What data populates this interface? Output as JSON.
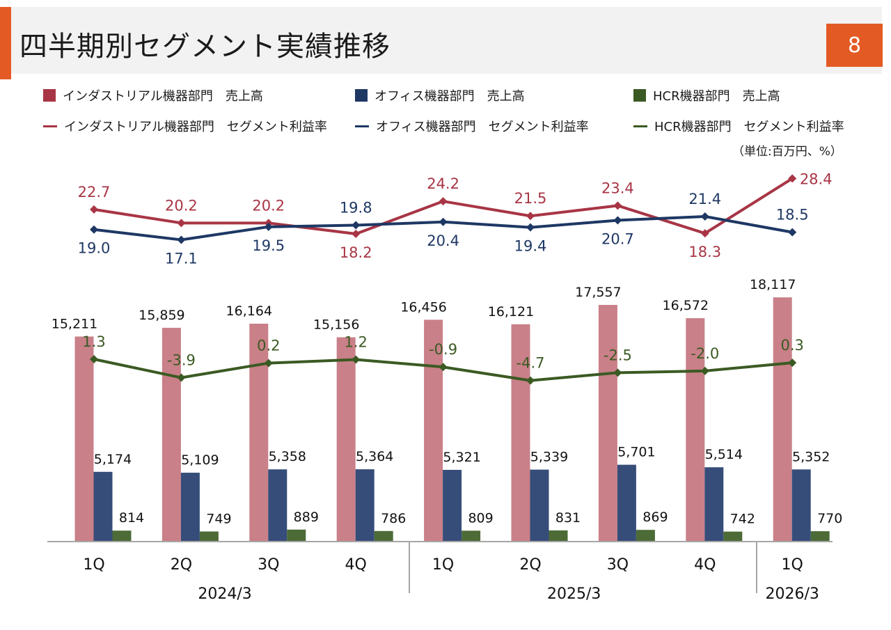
{
  "page": {
    "title": "四半期別セグメント実績推移",
    "page_number": "8",
    "unit_note": "（単位:百万円、%）"
  },
  "colors": {
    "accent": "#e35a24",
    "industrial": "#a83545",
    "industrial_bar": "#c98088",
    "office": "#1e3864",
    "office_bar": "#364d7a",
    "hcr": "#3b5a23",
    "hcr_bar": "#4c6b37"
  },
  "legend": {
    "industrial_sales": "インダストリアル機器部門　売上高",
    "office_sales": "オフィス機器部門　売上高",
    "hcr_sales": "HCR機器部門　売上高",
    "industrial_margin": "インダストリアル機器部門　セグメント利益率",
    "office_margin": "オフィス機器部門　セグメント利益率",
    "hcr_margin": "HCR機器部門　セグメント利益率"
  },
  "chart_data": {
    "type": "bar",
    "categories": [
      "1Q",
      "2Q",
      "3Q",
      "4Q",
      "1Q",
      "2Q",
      "3Q",
      "4Q",
      "1Q"
    ],
    "groups": [
      {
        "label": "2024/3",
        "span": [
          0,
          3
        ]
      },
      {
        "label": "2025/3",
        "span": [
          4,
          7
        ]
      },
      {
        "label": "2026/3",
        "span": [
          8,
          8
        ]
      }
    ],
    "series": [
      {
        "name": "インダストリアル機器部門　売上高",
        "kind": "bar",
        "color": "#c98088",
        "values": [
          15211,
          15859,
          16164,
          15156,
          16456,
          16121,
          17557,
          16572,
          18117
        ],
        "labels": [
          "15,211",
          "15,859",
          "16,164",
          "15,156",
          "16,456",
          "16,121",
          "17,557",
          "16,572",
          "18,117"
        ]
      },
      {
        "name": "オフィス機器部門　売上高",
        "kind": "bar",
        "color": "#364d7a",
        "values": [
          5174,
          5109,
          5358,
          5364,
          5321,
          5339,
          5701,
          5514,
          5352
        ],
        "labels": [
          "5,174",
          "5,109",
          "5,358",
          "5,364",
          "5,321",
          "5,339",
          "5,701",
          "5,514",
          "5,352"
        ]
      },
      {
        "name": "HCR機器部門　売上高",
        "kind": "bar",
        "color": "#4c6b37",
        "values": [
          814,
          749,
          889,
          786,
          809,
          831,
          869,
          742,
          770
        ],
        "labels": [
          "814",
          "749",
          "889",
          "786",
          "809",
          "831",
          "869",
          "742",
          "770"
        ]
      },
      {
        "name": "インダストリアル機器部門　セグメント利益率",
        "kind": "line",
        "color": "#a83545",
        "values": [
          22.7,
          20.2,
          20.2,
          18.2,
          24.2,
          21.5,
          23.4,
          18.3,
          28.4
        ],
        "labels": [
          "22.7",
          "20.2",
          "20.2",
          "18.2",
          "24.2",
          "21.5",
          "23.4",
          "18.3",
          "28.4"
        ]
      },
      {
        "name": "オフィス機器部門　セグメント利益率",
        "kind": "line",
        "color": "#1e3864",
        "values": [
          19.0,
          17.1,
          19.5,
          19.8,
          20.4,
          19.4,
          20.7,
          21.4,
          18.5
        ],
        "labels": [
          "19.0",
          "17.1",
          "19.5",
          "19.8",
          "20.4",
          "19.4",
          "20.7",
          "21.4",
          "18.5"
        ]
      },
      {
        "name": "HCR機器部門　セグメント利益率",
        "kind": "line",
        "color": "#3b5a23",
        "values": [
          1.3,
          -3.9,
          0.2,
          1.2,
          -0.9,
          -4.7,
          -2.5,
          -2.0,
          0.3
        ],
        "labels": [
          "1.3",
          "-3.9",
          "0.2",
          "1.2",
          "-0.9",
          "-4.7",
          "-2.5",
          "-2.0",
          "0.3"
        ]
      }
    ],
    "legend_position": "top",
    "grid": false
  }
}
